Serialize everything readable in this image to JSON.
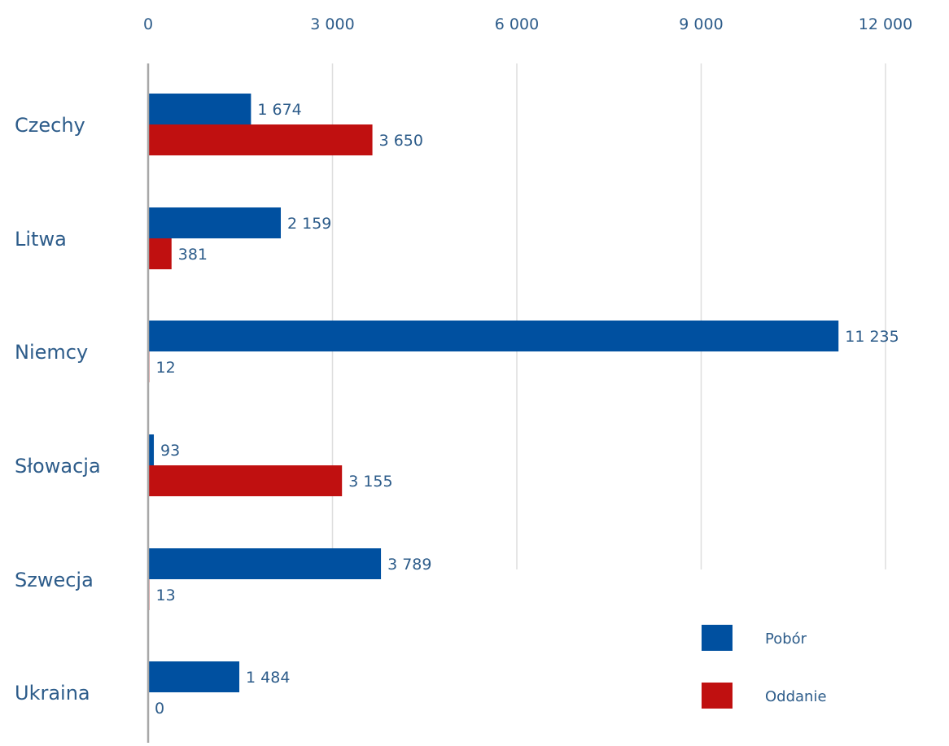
{
  "chart_data": {
    "type": "bar",
    "orientation": "horizontal",
    "categories": [
      "Czechy",
      "Litwa",
      "Niemcy",
      "Słowacja",
      "Szwecja",
      "Ukraina"
    ],
    "series": [
      {
        "name": "Pobór",
        "color": "#0050a0",
        "values": [
          1674,
          2159,
          11235,
          93,
          3789,
          1484
        ]
      },
      {
        "name": "Oddanie",
        "color": "#c01010",
        "values": [
          3650,
          381,
          12,
          3155,
          13,
          0
        ]
      }
    ],
    "data_labels": [
      [
        "1 674",
        "2 159",
        "11 235",
        "93",
        "3 789",
        "1 484"
      ],
      [
        "3 650",
        "381",
        "12",
        "3 155",
        "13",
        "0"
      ]
    ],
    "x_ticks": [
      0,
      3000,
      6000,
      9000,
      12000
    ],
    "x_tick_labels": [
      "0",
      "3 000",
      "6 000",
      "9 000",
      "12 000"
    ],
    "xlim": [
      0,
      12000
    ],
    "x_axis_position": "top",
    "grid": "vertical",
    "legend": "bottom-right"
  }
}
